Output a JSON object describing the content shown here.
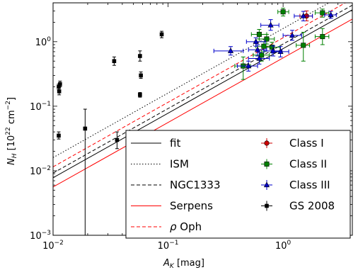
{
  "chart_data": {
    "type": "scatter",
    "xlabel": "A_K [mag]",
    "xlabel_parts": {
      "main": "A",
      "sub": "K",
      "unit": " [mag]"
    },
    "ylabel_parts": {
      "main": "N",
      "sub": "H",
      "unit_pre": " [10",
      "sup": "22",
      "unit_post": " cm",
      "sup2": "−2",
      "close": "]"
    },
    "x_scale": "log",
    "y_scale": "log",
    "xlim": [
      0.01,
      4.0
    ],
    "ylim": [
      0.001,
      4.0
    ],
    "x_tick_labels": [
      {
        "value": 0.01,
        "base": "10",
        "exp": "−2"
      },
      {
        "value": 0.1,
        "base": "10",
        "exp": "−1"
      },
      {
        "value": 1,
        "base": "10",
        "exp": "0"
      }
    ],
    "y_tick_labels": [
      {
        "value": 0.001,
        "base": "10",
        "exp": "−3"
      },
      {
        "value": 0.01,
        "base": "10",
        "exp": "−2"
      },
      {
        "value": 0.1,
        "base": "10",
        "exp": "−1"
      },
      {
        "value": 1,
        "base": "10",
        "exp": "0"
      }
    ],
    "legend_position": "lower-right",
    "lines": [
      {
        "name": "fit",
        "coef": 0.78,
        "color": "#000000",
        "dash": "solid"
      },
      {
        "name": "ISM",
        "coef": 1.6,
        "color": "#000000",
        "dash": "dotted"
      },
      {
        "name": "NGC1333",
        "coef": 0.92,
        "color": "#000000",
        "dash": "dashed"
      },
      {
        "name": "Serpens",
        "coef": 0.56,
        "color": "#ff0000",
        "dash": "solid"
      },
      {
        "name": "ρ Oph",
        "coef": 1.15,
        "color": "#ff0000",
        "dash": "dashed"
      }
    ],
    "legend_line_labels": [
      {
        "text": "fit"
      },
      {
        "text": "ISM"
      },
      {
        "text": "NGC1333"
      },
      {
        "text": "Serpens"
      },
      {
        "prefix": "ρ",
        "text": " Oph"
      }
    ],
    "series": [
      {
        "name": "Class I",
        "color": "#cc0000",
        "marker": "circle",
        "points": [
          {
            "x": 1.6,
            "y": 2.5,
            "xerr": [
              1.4,
              1.8
            ],
            "yerr": [
              2.1,
              3.0
            ]
          }
        ]
      },
      {
        "name": "Class II",
        "color": "#008000",
        "marker": "square",
        "points": [
          {
            "x": 0.45,
            "y": 0.42,
            "xerr": [
              0.38,
              0.52
            ],
            "yerr": [
              0.26,
              0.58
            ]
          },
          {
            "x": 0.62,
            "y": 1.3,
            "xerr": [
              0.53,
              0.72
            ],
            "yerr": [
              1.1,
              1.55
            ]
          },
          {
            "x": 0.68,
            "y": 0.85,
            "xerr": [
              0.58,
              0.8
            ],
            "yerr": [
              0.7,
              1.0
            ]
          },
          {
            "x": 0.72,
            "y": 1.1,
            "xerr": [
              0.62,
              0.84
            ],
            "yerr": [
              0.92,
              1.3
            ]
          },
          {
            "x": 0.8,
            "y": 0.82,
            "xerr": [
              0.68,
              0.94
            ],
            "yerr": [
              0.68,
              0.98
            ]
          },
          {
            "x": 0.65,
            "y": 0.62,
            "xerr": [
              0.55,
              0.76
            ],
            "yerr": [
              0.5,
              0.75
            ]
          },
          {
            "x": 1.0,
            "y": 2.9,
            "xerr": [
              0.9,
              1.12
            ],
            "yerr": [
              2.5,
              3.3
            ]
          },
          {
            "x": 1.5,
            "y": 0.88,
            "xerr": [
              1.3,
              1.7
            ],
            "yerr": [
              0.5,
              1.4
            ]
          },
          {
            "x": 2.2,
            "y": 2.8,
            "xerr": [
              1.9,
              2.5
            ],
            "yerr": [
              2.4,
              3.2
            ]
          },
          {
            "x": 2.2,
            "y": 1.2,
            "xerr": [
              1.9,
              2.5
            ],
            "yerr": [
              0.9,
              1.6
            ]
          }
        ]
      },
      {
        "name": "Class III",
        "color": "#0000cc",
        "marker": "triangle",
        "points": [
          {
            "x": 0.35,
            "y": 0.72,
            "xerr": [
              0.25,
              0.45
            ],
            "yerr": [
              0.62,
              0.84
            ]
          },
          {
            "x": 0.5,
            "y": 0.42,
            "xerr": [
              0.4,
              0.6
            ],
            "yerr": [
              0.35,
              0.5
            ]
          },
          {
            "x": 0.58,
            "y": 1.0,
            "xerr": [
              0.48,
              0.7
            ],
            "yerr": [
              0.85,
              1.15
            ]
          },
          {
            "x": 0.6,
            "y": 0.75,
            "xerr": [
              0.5,
              0.72
            ],
            "yerr": [
              0.6,
              0.9
            ]
          },
          {
            "x": 0.62,
            "y": 0.55,
            "xerr": [
              0.5,
              0.76
            ],
            "yerr": [
              0.45,
              0.68
            ]
          },
          {
            "x": 0.78,
            "y": 1.8,
            "xerr": [
              0.64,
              0.92
            ],
            "yerr": [
              1.5,
              2.2
            ]
          },
          {
            "x": 0.82,
            "y": 0.72,
            "xerr": [
              0.68,
              0.98
            ],
            "yerr": [
              0.6,
              0.86
            ]
          },
          {
            "x": 0.95,
            "y": 0.7,
            "xerr": [
              0.8,
              1.12
            ],
            "yerr": [
              0.58,
              0.84
            ]
          },
          {
            "x": 1.2,
            "y": 1.25,
            "xerr": [
              1.0,
              1.45
            ],
            "yerr": [
              1.05,
              1.5
            ]
          },
          {
            "x": 1.5,
            "y": 2.5,
            "xerr": [
              1.25,
              1.8
            ],
            "yerr": [
              2.1,
              2.95
            ]
          },
          {
            "x": 2.6,
            "y": 2.6,
            "xerr": [
              2.3,
              2.9
            ],
            "yerr": [
              2.3,
              2.95
            ]
          }
        ]
      },
      {
        "name": "GS 2008",
        "color": "#000000",
        "marker": "square",
        "points": [
          {
            "x": 0.0112,
            "y": 0.2,
            "yerr": [
              0.18,
              0.22
            ]
          },
          {
            "x": 0.0113,
            "y": 0.17,
            "yerr": [
              0.15,
              0.19
            ]
          },
          {
            "x": 0.0115,
            "y": 0.22,
            "yerr": [
              0.2,
              0.245
            ]
          },
          {
            "x": 0.0112,
            "y": 0.035,
            "yerr": [
              0.031,
              0.04
            ]
          },
          {
            "x": 0.019,
            "y": 0.045,
            "yerr": [
              0.001,
              0.09
            ]
          },
          {
            "x": 0.034,
            "y": 0.5,
            "yerr": [
              0.43,
              0.58
            ]
          },
          {
            "x": 0.036,
            "y": 0.03,
            "yerr": [
              0.022,
              0.04
            ]
          },
          {
            "x": 0.057,
            "y": 0.6,
            "yerr": [
              0.5,
              0.72
            ]
          },
          {
            "x": 0.058,
            "y": 0.3,
            "yerr": [
              0.27,
              0.34
            ]
          },
          {
            "x": 0.057,
            "y": 0.15,
            "yerr": [
              0.138,
              0.163
            ]
          },
          {
            "x": 0.088,
            "y": 1.3,
            "yerr": [
              1.15,
              1.45
            ]
          }
        ]
      }
    ]
  }
}
